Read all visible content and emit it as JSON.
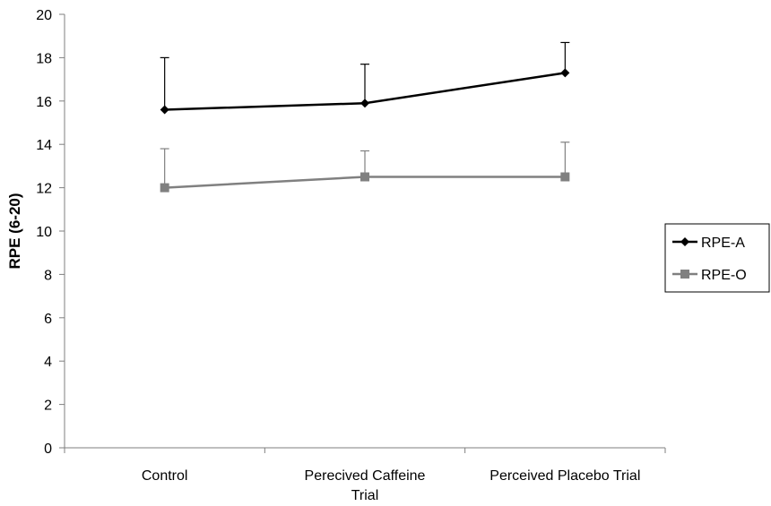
{
  "chart_data": {
    "type": "line",
    "title": "",
    "xlabel": "",
    "ylabel": "RPE (6-20)",
    "ylim": [
      0,
      20
    ],
    "yticks": [
      0,
      2,
      4,
      6,
      8,
      10,
      12,
      14,
      16,
      18,
      20
    ],
    "categories": [
      [
        "Control"
      ],
      [
        "Perecived Caffeine",
        "Trial"
      ],
      [
        "Perceived Placebo Trial"
      ]
    ],
    "series": [
      {
        "name": "RPE-A",
        "values": [
          15.6,
          15.9,
          17.3
        ],
        "error_upper": [
          18.0,
          17.7,
          18.7
        ],
        "color": "#000000",
        "marker": "diamond"
      },
      {
        "name": "RPE-O",
        "values": [
          12.0,
          12.5,
          12.5
        ],
        "error_upper": [
          13.8,
          13.7,
          14.1
        ],
        "color": "#808080",
        "marker": "square"
      }
    ],
    "grid": false,
    "legend_position": "right"
  }
}
